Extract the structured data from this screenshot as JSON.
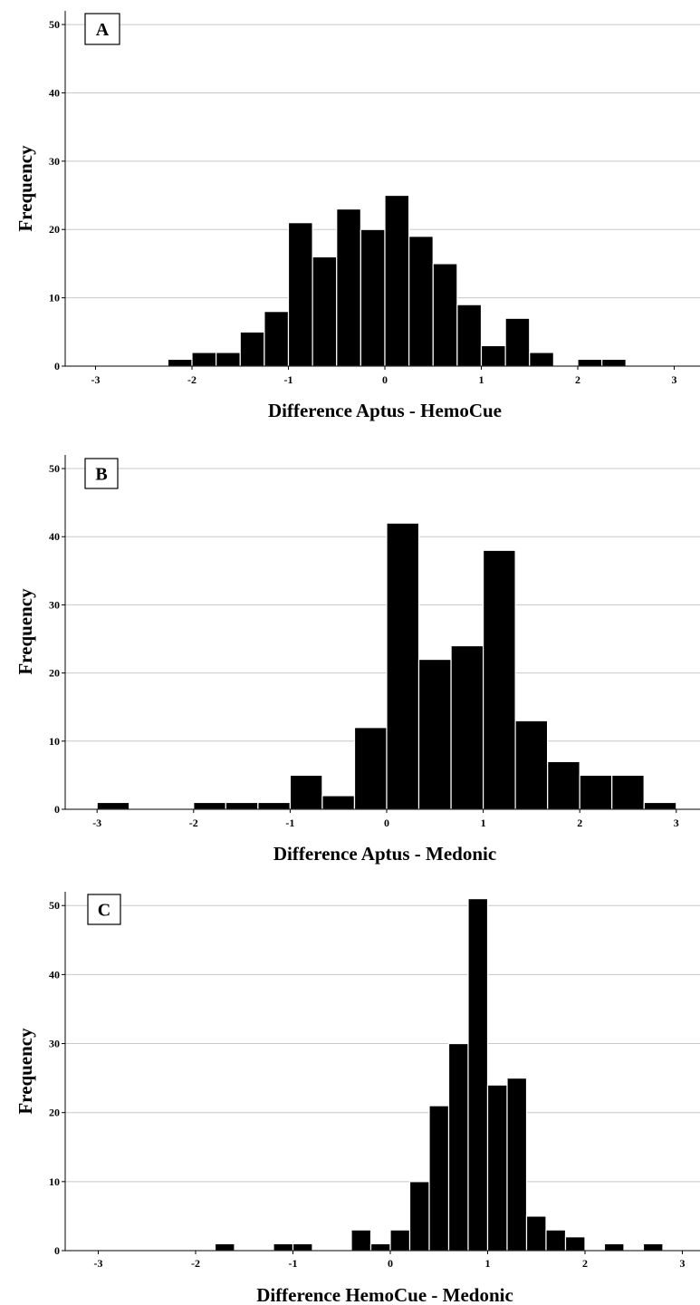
{
  "chart_data": [
    {
      "type": "bar",
      "panel_label": "A",
      "xlabel": "Difference Aptus - HemoCue",
      "ylabel": "Frequency",
      "ylim": [
        0,
        52
      ],
      "yticks": [
        0,
        10,
        20,
        30,
        40,
        50
      ],
      "xlim": [
        -3.3,
        3.3
      ],
      "xticks": [
        -3,
        -2,
        -1,
        0,
        1,
        2,
        3
      ],
      "grid": "horizontal",
      "bin_width": 0.25,
      "bins": [
        {
          "start": -2.25,
          "value": 1
        },
        {
          "start": -2.0,
          "value": 2
        },
        {
          "start": -1.75,
          "value": 2
        },
        {
          "start": -1.5,
          "value": 5
        },
        {
          "start": -1.25,
          "value": 8
        },
        {
          "start": -1.0,
          "value": 21
        },
        {
          "start": -0.75,
          "value": 16
        },
        {
          "start": -0.5,
          "value": 23
        },
        {
          "start": -0.25,
          "value": 20
        },
        {
          "start": 0.0,
          "value": 25
        },
        {
          "start": 0.25,
          "value": 19
        },
        {
          "start": 0.5,
          "value": 15
        },
        {
          "start": 0.75,
          "value": 9
        },
        {
          "start": 1.0,
          "value": 3
        },
        {
          "start": 1.25,
          "value": 7
        },
        {
          "start": 1.5,
          "value": 2
        },
        {
          "start": 2.0,
          "value": 1
        },
        {
          "start": 2.25,
          "value": 1
        }
      ]
    },
    {
      "type": "bar",
      "panel_label": "B",
      "xlabel": "Difference Aptus - Medonic",
      "ylabel": "Frequency",
      "ylim": [
        0,
        52
      ],
      "yticks": [
        0,
        10,
        20,
        30,
        40,
        50
      ],
      "xlim": [
        -3.3,
        3.3
      ],
      "xticks": [
        -3,
        -2,
        -1,
        0,
        1,
        2,
        3
      ],
      "grid": "horizontal",
      "bin_width": 0.333,
      "bins": [
        {
          "start": -3.0,
          "value": 1
        },
        {
          "start": -2.0,
          "value": 1
        },
        {
          "start": -1.667,
          "value": 1
        },
        {
          "start": -1.333,
          "value": 1
        },
        {
          "start": -1.0,
          "value": 5
        },
        {
          "start": -0.667,
          "value": 2
        },
        {
          "start": -0.333,
          "value": 12
        },
        {
          "start": 0.0,
          "value": 42
        },
        {
          "start": 0.333,
          "value": 22
        },
        {
          "start": 0.667,
          "value": 24
        },
        {
          "start": 1.0,
          "value": 38
        },
        {
          "start": 1.333,
          "value": 13
        },
        {
          "start": 1.667,
          "value": 7
        },
        {
          "start": 2.0,
          "value": 5
        },
        {
          "start": 2.333,
          "value": 5
        },
        {
          "start": 2.667,
          "value": 1
        }
      ]
    },
    {
      "type": "bar",
      "panel_label": "C",
      "xlabel": "Difference HemoCue - Medonic",
      "ylabel": "Frequency",
      "ylim": [
        0,
        52
      ],
      "yticks": [
        0,
        10,
        20,
        30,
        40,
        50
      ],
      "xlim": [
        -3.3,
        3.3
      ],
      "xticks": [
        -3,
        -2,
        -1,
        0,
        1,
        2,
        3
      ],
      "grid": "horizontal",
      "bin_width": 0.2,
      "bins": [
        {
          "start": -1.8,
          "value": 1
        },
        {
          "start": -1.2,
          "value": 1
        },
        {
          "start": -1.0,
          "value": 1
        },
        {
          "start": -0.4,
          "value": 3
        },
        {
          "start": -0.2,
          "value": 1
        },
        {
          "start": 0.0,
          "value": 3
        },
        {
          "start": 0.2,
          "value": 10
        },
        {
          "start": 0.4,
          "value": 21
        },
        {
          "start": 0.6,
          "value": 30
        },
        {
          "start": 0.8,
          "value": 51
        },
        {
          "start": 1.0,
          "value": 24
        },
        {
          "start": 1.2,
          "value": 25
        },
        {
          "start": 1.4,
          "value": 5
        },
        {
          "start": 1.6,
          "value": 3
        },
        {
          "start": 1.8,
          "value": 2
        },
        {
          "start": 2.2,
          "value": 1
        },
        {
          "start": 2.6,
          "value": 1
        }
      ]
    }
  ]
}
